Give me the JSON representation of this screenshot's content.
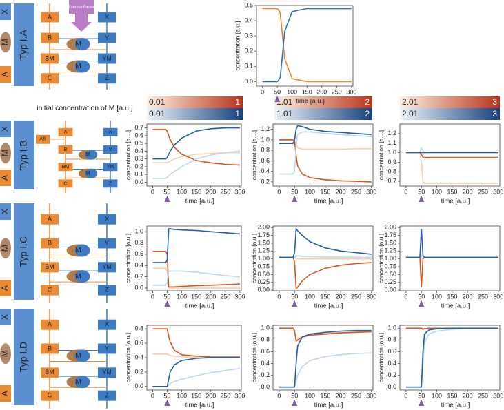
{
  "diagrams": [
    {
      "label": "Typ I.A",
      "icon": [
        "X",
        "M",
        "A"
      ],
      "left": [
        "A",
        "B",
        "BM",
        "C"
      ],
      "right": [
        "X",
        "Y",
        "YM",
        "Z"
      ],
      "m": [
        "M",
        "M"
      ],
      "external": "External Factor"
    },
    {
      "label": "Typ I.B",
      "icon": [
        "X",
        "M",
        "A"
      ],
      "left": [
        "A",
        "B",
        "BM",
        "C"
      ],
      "right": [
        "X",
        "Y",
        "YM",
        "Z"
      ],
      "m": [
        "M",
        "M"
      ],
      "side": "AB"
    },
    {
      "label": "Typ I.C",
      "icon": [
        "X",
        "M",
        "A"
      ],
      "left": [
        "A",
        "B",
        "BM",
        "C"
      ],
      "right": [
        "X",
        "Y",
        "YM",
        "Z"
      ],
      "m": [
        "M",
        "M"
      ]
    },
    {
      "label": "Typ I.D",
      "icon": [
        "X",
        "M",
        "A"
      ],
      "left": [
        "A",
        "B",
        "BM",
        "C"
      ],
      "right": [
        "X",
        "Y",
        "YM",
        "Z"
      ],
      "m": [
        "M",
        "M"
      ]
    }
  ],
  "legend_title": "initial concentration of M [a.u.]",
  "colorbars": [
    {
      "orange": [
        0.01,
        1
      ],
      "blue": [
        0.01,
        1
      ]
    },
    {
      "orange": [
        1.01,
        2
      ],
      "blue": [
        1.01,
        2
      ]
    },
    {
      "orange": [
        2.01,
        3
      ],
      "blue": [
        2.01,
        3
      ]
    }
  ],
  "chart_data": [
    {
      "type": "line",
      "x": [
        0,
        45,
        50,
        55,
        60,
        75,
        100,
        150,
        200,
        250,
        300
      ],
      "series": [
        {
          "color": "#e8822a",
          "values": [
            0.48,
            0.48,
            0.48,
            0.47,
            0.45,
            0.15,
            0.02,
            0,
            0,
            0,
            0
          ]
        },
        {
          "color": "#2f6db5",
          "values": [
            0,
            0,
            0,
            0.01,
            0.03,
            0.33,
            0.46,
            0.48,
            0.48,
            0.48,
            0.48
          ]
        }
      ],
      "xlim": [
        -20,
        305
      ],
      "ylim": [
        -0.03,
        0.5
      ],
      "xticks": [
        0,
        50,
        100,
        150,
        200,
        250,
        300
      ],
      "yticks": [
        {
          "value": 0,
          "label": "0.0"
        },
        0.1,
        0.2,
        0.3,
        0.4,
        0.5
      ],
      "xlabel": "time [a.u.]",
      "ylabel": "concentration [a.u.]",
      "marker": 50
    },
    {
      "type": "line",
      "x": [
        0,
        45,
        50,
        55,
        60,
        75,
        100,
        150,
        200,
        250,
        300
      ],
      "series": [
        {
          "color": "#f9cfa8",
          "values": [
            0.25,
            0.25,
            0.25,
            0.26,
            0.27,
            0.3,
            0.33,
            0.36,
            0.37,
            0.38,
            0.38
          ]
        },
        {
          "color": "#d4561c",
          "values": [
            0.68,
            0.68,
            0.66,
            0.6,
            0.55,
            0.45,
            0.36,
            0.28,
            0.25,
            0.23,
            0.22
          ]
        },
        {
          "color": "#bcd7ee",
          "values": [
            0.05,
            0.05,
            0.06,
            0.08,
            0.1,
            0.14,
            0.2,
            0.3,
            0.35,
            0.38,
            0.4
          ]
        },
        {
          "color": "#1f5ea8",
          "values": [
            0.3,
            0.3,
            0.32,
            0.36,
            0.4,
            0.48,
            0.57,
            0.66,
            0.69,
            0.7,
            0.7
          ]
        }
      ],
      "xlim": [
        -20,
        305
      ],
      "ylim": [
        -0.05,
        0.75
      ],
      "xticks": [
        0,
        50,
        100,
        150,
        200,
        250,
        300
      ],
      "yticks": [
        {
          "value": 0,
          "label": "0.0"
        },
        0.1,
        0.2,
        0.3,
        0.4,
        0.5,
        0.6,
        0.7
      ],
      "xlabel": "time [a.u.]",
      "ylabel": "concentration [a.u.]",
      "marker": 50
    },
    {
      "type": "line",
      "x": [
        0,
        45,
        50,
        55,
        60,
        75,
        100,
        150,
        200,
        250,
        300
      ],
      "series": [
        {
          "color": "#f9cfa8",
          "values": [
            1,
            1,
            1,
            0.9,
            0.85,
            0.82,
            0.82,
            0.82,
            0.82,
            0.83,
            0.83
          ]
        },
        {
          "color": "#d4561c",
          "values": [
            1,
            1,
            0.98,
            0.7,
            0.5,
            0.35,
            0.28,
            0.24,
            0.22,
            0.21,
            0.2
          ]
        },
        {
          "color": "#bcd7ee",
          "values": [
            0.35,
            0.35,
            0.4,
            0.9,
            1.1,
            1.15,
            1.15,
            1.12,
            1.1,
            1.08,
            1.06
          ]
        },
        {
          "color": "#1f5ea8",
          "values": [
            0.93,
            0.93,
            1,
            1.2,
            1.27,
            1.25,
            1.2,
            1.16,
            1.14,
            1.12,
            1.1
          ]
        }
      ],
      "xlim": [
        -20,
        305
      ],
      "ylim": [
        0.12,
        1.3
      ],
      "xticks": [
        0,
        50,
        100,
        150,
        200,
        250,
        300
      ],
      "yticks": [
        0.2,
        0.4,
        0.6,
        0.8,
        {
          "value": 1,
          "label": "1.0"
        },
        1.2
      ],
      "xlabel": "time [a.u.]",
      "ylabel": "concentration [a.u.]",
      "marker": 50
    },
    {
      "type": "line",
      "x": [
        0,
        45,
        50,
        55,
        60,
        75,
        100,
        150,
        200,
        250,
        300
      ],
      "series": [
        {
          "color": "#f9cfa8",
          "values": [
            1,
            1,
            0.9,
            0.7,
            0.68,
            0.68,
            0.68,
            0.68,
            0.68,
            0.68,
            0.68
          ]
        },
        {
          "color": "#d4561c",
          "values": [
            1,
            1,
            0.98,
            0.95,
            0.95,
            0.95,
            0.95,
            0.95,
            0.95,
            0.95,
            0.95
          ]
        },
        {
          "color": "#bcd7ee",
          "values": [
            1,
            1,
            1.05,
            1.02,
            1,
            1,
            1,
            1,
            1,
            1,
            1
          ]
        },
        {
          "color": "#1f5ea8",
          "values": [
            1,
            1,
            1,
            1,
            1,
            1,
            1,
            1,
            1,
            1,
            1
          ]
        }
      ],
      "xlim": [
        -20,
        305
      ],
      "ylim": [
        0.65,
        1.3
      ],
      "xticks": [
        0,
        50,
        100,
        150,
        200,
        250,
        300
      ],
      "yticks": [
        0.7,
        0.8,
        0.9,
        {
          "value": 1,
          "label": "1.0"
        },
        1.1,
        1.2
      ],
      "xlabel": "time [a.u.]",
      "ylabel": "concentration [a.u.]",
      "marker": 50
    },
    {
      "type": "line",
      "x": [
        0,
        45,
        50,
        55,
        60,
        75,
        100,
        150,
        200,
        250,
        300
      ],
      "series": [
        {
          "color": "#f9cfa8",
          "values": [
            0.35,
            0.35,
            0.3,
            0,
            0,
            0,
            0,
            0,
            0,
            0,
            0
          ]
        },
        {
          "color": "#d4561c",
          "values": [
            0.65,
            0.65,
            0.6,
            0.02,
            0.02,
            0.02,
            0.03,
            0.04,
            0.05,
            0.06,
            0.07
          ]
        },
        {
          "color": "#bcd7ee",
          "values": [
            0.05,
            0.05,
            0.1,
            0.3,
            0.3,
            0.3,
            0.3,
            0.28,
            0.25,
            0.22,
            0.2
          ]
        },
        {
          "color": "#1f5ea8",
          "values": [
            0.45,
            0.45,
            0.5,
            1.05,
            1.05,
            1.04,
            1.03,
            1.02,
            1,
            0.98,
            0.96
          ]
        }
      ],
      "xlim": [
        -20,
        305
      ],
      "ylim": [
        -0.05,
        1.1
      ],
      "xticks": [
        0,
        50,
        100,
        150,
        200,
        250,
        300
      ],
      "yticks": [
        {
          "value": 0,
          "label": "0.0"
        },
        0.2,
        0.4,
        0.6,
        0.8,
        {
          "value": 1,
          "label": "1.0"
        }
      ],
      "xlabel": "time [a.u.]",
      "ylabel": "concentration [a.u.]",
      "marker": 50
    },
    {
      "type": "line",
      "x": [
        0,
        45,
        50,
        55,
        60,
        75,
        100,
        150,
        200,
        250,
        300
      ],
      "series": [
        {
          "color": "#f9cfa8",
          "values": [
            1.05,
            1.05,
            1.05,
            1,
            1,
            1,
            1,
            1,
            1,
            1,
            1
          ]
        },
        {
          "color": "#d4561c",
          "values": [
            1.05,
            1.05,
            0.9,
            0.05,
            0.1,
            0.3,
            0.5,
            0.7,
            0.8,
            0.85,
            0.88
          ]
        },
        {
          "color": "#bcd7ee",
          "values": [
            1.05,
            1.05,
            1.05,
            1.1,
            1.1,
            1.08,
            1.07,
            1.06,
            1.06,
            1.05,
            1.05
          ]
        },
        {
          "color": "#1f5ea8",
          "values": [
            1.05,
            1.05,
            1.2,
            1.95,
            1.9,
            1.75,
            1.55,
            1.35,
            1.25,
            1.2,
            1.15
          ]
        }
      ],
      "xlim": [
        -20,
        305
      ],
      "ylim": [
        -0.02,
        2.05
      ],
      "xticks": [
        0,
        50,
        100,
        150,
        200,
        250,
        300
      ],
      "yticks": [
        {
          "value": 0,
          "label": "0.00"
        },
        0.25,
        {
          "value": 0.5,
          "label": "0.50"
        },
        0.75,
        {
          "value": 1,
          "label": "1.00"
        },
        1.25,
        {
          "value": 1.5,
          "label": "1.50"
        },
        1.75,
        {
          "value": 2,
          "label": "2.00"
        }
      ],
      "xlabel": "time [a.u.]",
      "ylabel": "concentration [a.u.]",
      "marker": 50
    },
    {
      "type": "line",
      "x": [
        0,
        45,
        50,
        55,
        60,
        75,
        100,
        150,
        200,
        250,
        300
      ],
      "series": [
        {
          "color": "#f9cfa8",
          "values": [
            1.05,
            1.05,
            1,
            1.05,
            1.05,
            1.05,
            1.05,
            1.05,
            1.05,
            1.05,
            1.05
          ]
        },
        {
          "color": "#d4561c",
          "values": [
            1.05,
            1.05,
            0.1,
            1,
            1.05,
            1.05,
            1.05,
            1.05,
            1.05,
            1.05,
            1.05
          ]
        },
        {
          "color": "#bcd7ee",
          "values": [
            1.05,
            1.05,
            1.1,
            1.05,
            1.05,
            1.05,
            1.05,
            1.05,
            1.05,
            1.05,
            1.05
          ]
        },
        {
          "color": "#1f5ea8",
          "values": [
            1.05,
            1.05,
            1.95,
            1.1,
            1.05,
            1.05,
            1.05,
            1.05,
            1.05,
            1.05,
            1.05
          ]
        }
      ],
      "xlim": [
        -20,
        305
      ],
      "ylim": [
        -0.02,
        2.05
      ],
      "xticks": [
        0,
        50,
        100,
        150,
        200,
        250,
        300
      ],
      "yticks": [
        {
          "value": 0,
          "label": "0.00"
        },
        0.25,
        {
          "value": 0.5,
          "label": "0.50"
        },
        0.75,
        {
          "value": 1,
          "label": "1.00"
        },
        1.25,
        {
          "value": 1.5,
          "label": "1.50"
        },
        1.75,
        {
          "value": 2,
          "label": "2.00"
        }
      ],
      "xlabel": "time [a.u.]",
      "ylabel": "concentration [a.u.]",
      "marker": 50
    },
    {
      "type": "line",
      "x": [
        0,
        45,
        50,
        55,
        60,
        75,
        100,
        150,
        200,
        250,
        300
      ],
      "series": [
        {
          "color": "#f9cfa8",
          "values": [
            0.45,
            0.45,
            0.45,
            0.44,
            0.43,
            0.42,
            0.41,
            0.4,
            0.4,
            0.4,
            0.4
          ]
        },
        {
          "color": "#d4561c",
          "values": [
            0.8,
            0.8,
            0.8,
            0.7,
            0.62,
            0.5,
            0.44,
            0.42,
            0.41,
            0.41,
            0.41
          ]
        },
        {
          "color": "#bcd7ee",
          "values": [
            0,
            0,
            0,
            0.02,
            0.04,
            0.07,
            0.1,
            0.15,
            0.19,
            0.22,
            0.25
          ]
        },
        {
          "color": "#1f5ea8",
          "values": [
            0,
            0,
            0,
            0.1,
            0.2,
            0.3,
            0.36,
            0.39,
            0.4,
            0.4,
            0.4
          ]
        }
      ],
      "xlim": [
        -20,
        305
      ],
      "ylim": [
        -0.05,
        0.85
      ],
      "xticks": [
        0,
        50,
        100,
        150,
        200,
        250,
        300
      ],
      "yticks": [
        {
          "value": 0,
          "label": "0.0"
        },
        0.2,
        0.4,
        0.6,
        0.8
      ],
      "xlabel": "time [a.u.]",
      "ylabel": "concentration [a.u.]",
      "marker": 50
    },
    {
      "type": "line",
      "x": [
        0,
        45,
        50,
        55,
        60,
        75,
        100,
        150,
        200,
        250,
        300
      ],
      "series": [
        {
          "color": "#f9cfa8",
          "values": [
            1,
            1,
            0.97,
            0.8,
            0.82,
            0.86,
            0.89,
            0.91,
            0.93,
            0.94,
            0.95
          ]
        },
        {
          "color": "#d4561c",
          "values": [
            1,
            1,
            0.95,
            0.78,
            0.8,
            0.85,
            0.88,
            0.9,
            0.92,
            0.93,
            0.94
          ]
        },
        {
          "color": "#bcd7ee",
          "values": [
            0,
            0,
            0,
            0.1,
            0.2,
            0.35,
            0.45,
            0.52,
            0.55,
            0.57,
            0.58
          ]
        },
        {
          "color": "#1f5ea8",
          "values": [
            0,
            0,
            0,
            0.4,
            0.7,
            0.85,
            0.9,
            0.93,
            0.95,
            0.96,
            0.96
          ]
        }
      ],
      "xlim": [
        -20,
        305
      ],
      "ylim": [
        -0.05,
        1.05
      ],
      "xticks": [
        0,
        50,
        100,
        150,
        200,
        250,
        300
      ],
      "yticks": [
        {
          "value": 0,
          "label": "0.0"
        },
        0.2,
        0.4,
        0.6,
        0.8,
        {
          "value": 1,
          "label": "1.0"
        }
      ],
      "xlabel": "time [a.u.]",
      "ylabel": "concentration [a.u.]",
      "marker": 50
    },
    {
      "type": "line",
      "x": [
        0,
        45,
        50,
        55,
        60,
        75,
        100,
        150,
        200,
        250,
        300
      ],
      "series": [
        {
          "color": "#f9cfa8",
          "values": [
            1,
            1,
            1,
            0.99,
            0.99,
            1,
            1,
            1,
            1,
            1,
            1
          ]
        },
        {
          "color": "#d4561c",
          "values": [
            1,
            1,
            1,
            0.98,
            0.99,
            1,
            1,
            1,
            1,
            1,
            1
          ]
        },
        {
          "color": "#bcd7ee",
          "values": [
            0,
            0,
            0,
            0.4,
            0.75,
            0.9,
            0.95,
            0.98,
            1,
            1,
            1
          ]
        },
        {
          "color": "#1f5ea8",
          "values": [
            0,
            0,
            0,
            0.6,
            0.9,
            0.97,
            0.99,
            1,
            1,
            1,
            1
          ]
        }
      ],
      "xlim": [
        -20,
        305
      ],
      "ylim": [
        -0.05,
        1.05
      ],
      "xticks": [
        0,
        50,
        100,
        150,
        200,
        250,
        300
      ],
      "yticks": [
        {
          "value": 0,
          "label": "0.0"
        },
        0.2,
        0.4,
        0.6,
        0.8,
        {
          "value": 1,
          "label": "1.0"
        }
      ],
      "xlabel": "time [a.u.]",
      "ylabel": "concentration [a.u.]",
      "marker": 50
    }
  ]
}
